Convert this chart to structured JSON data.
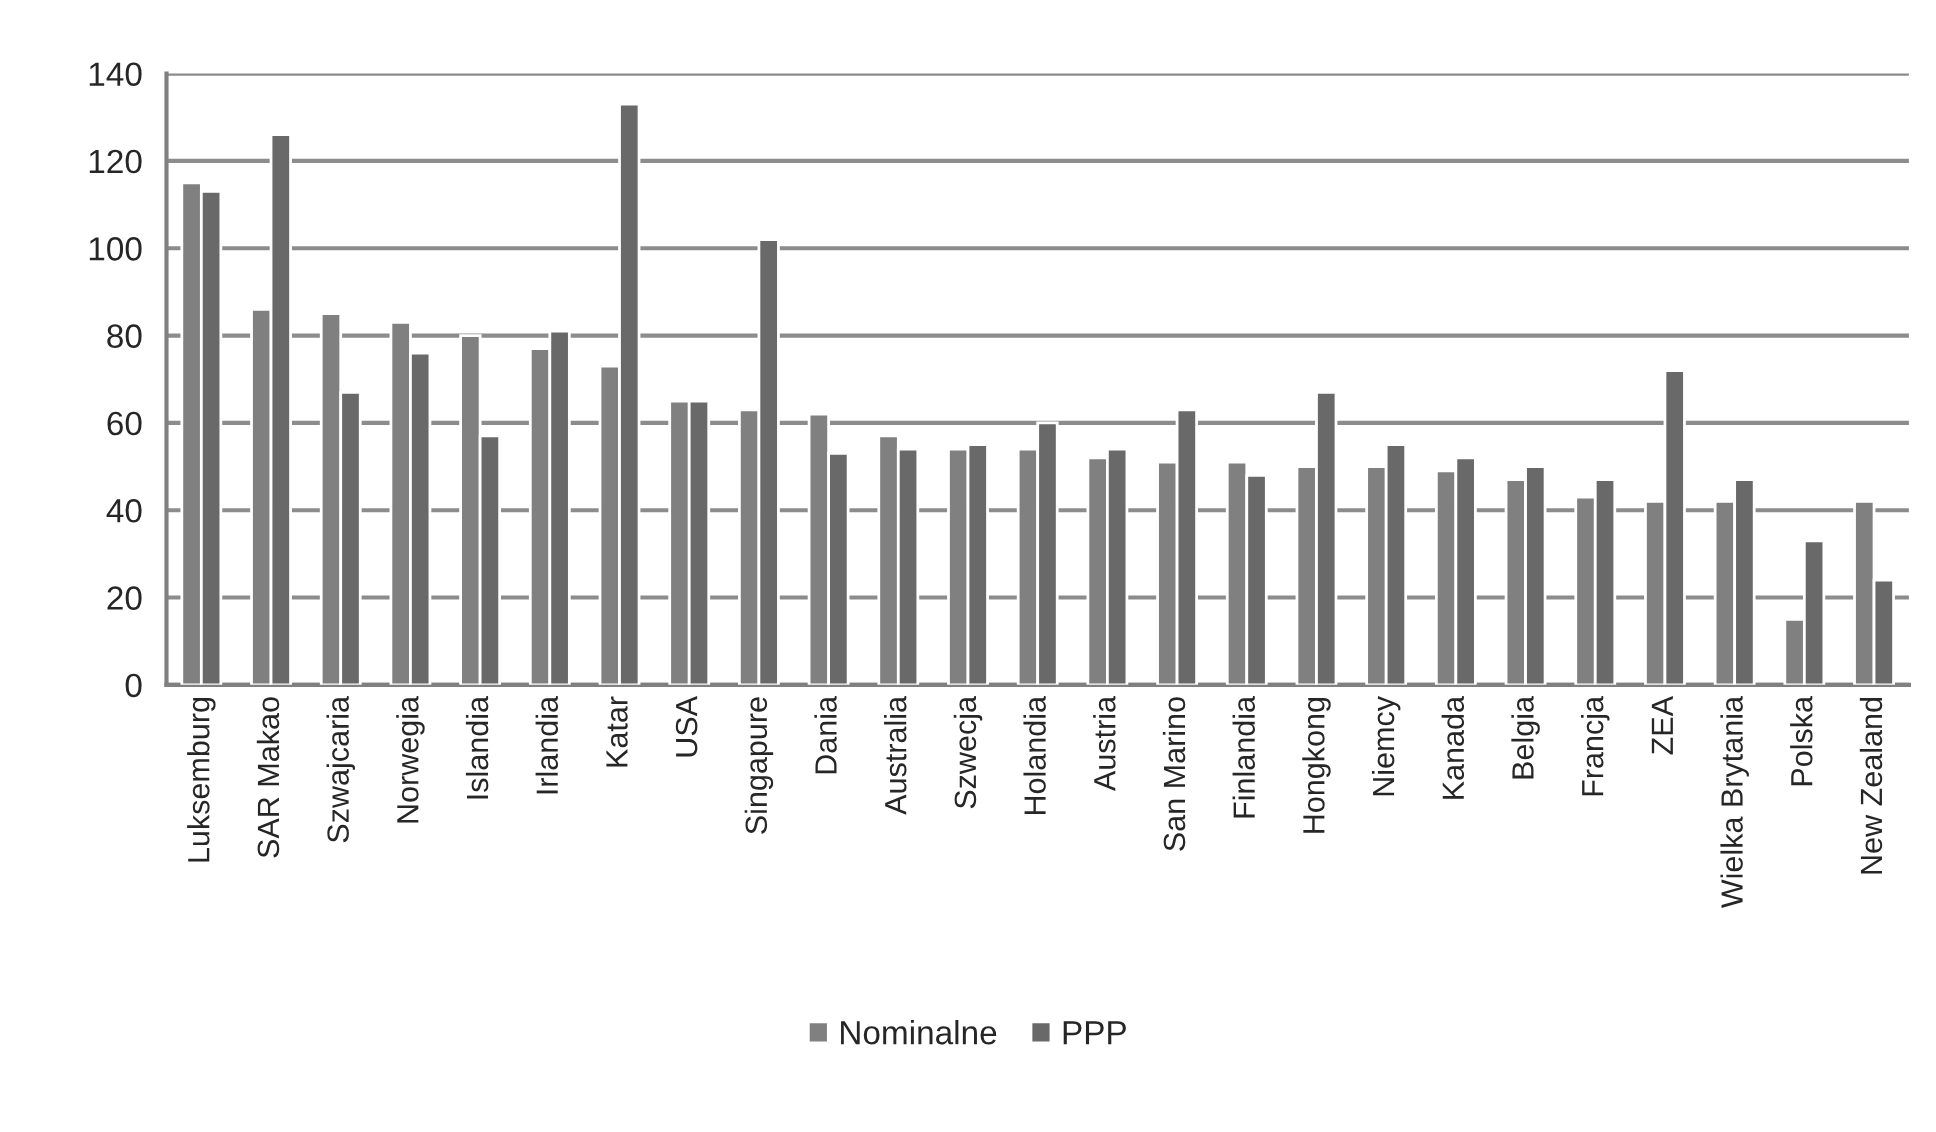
{
  "chart_data": {
    "type": "bar",
    "categories": [
      "Luksemburg",
      "SAR Makao",
      "Szwajcaria",
      "Norwegia",
      "Islandia",
      "Irlandia",
      "Katar",
      "USA",
      "Singapure",
      "Dania",
      "Australia",
      "Szwecja",
      "Holandia",
      "Austria",
      "San Marino",
      "Finlandia",
      "Hongkong",
      "Niemcy",
      "Kanada",
      "Belgia",
      "Francja",
      "ZEA",
      "Wielka Brytania",
      "Polska",
      "New Zealand"
    ],
    "series": [
      {
        "name": "Nominalne",
        "color": "#808080",
        "values": [
          115,
          86,
          85,
          83,
          80,
          77,
          73,
          65,
          63,
          62,
          57,
          54,
          54,
          52,
          51,
          51,
          50,
          50,
          49,
          47,
          43,
          42,
          42,
          15,
          42
        ]
      },
      {
        "name": "PPP",
        "color": "#696969",
        "values": [
          113,
          126,
          67,
          76,
          57,
          81,
          133,
          65,
          102,
          53,
          54,
          55,
          60,
          54,
          63,
          48,
          67,
          55,
          52,
          50,
          47,
          72,
          47,
          33,
          24
        ]
      }
    ],
    "ylim": [
      0,
      140
    ],
    "yticks": [
      0,
      20,
      40,
      60,
      80,
      100,
      120,
      140
    ],
    "grid": "y",
    "legend": "bottom"
  }
}
